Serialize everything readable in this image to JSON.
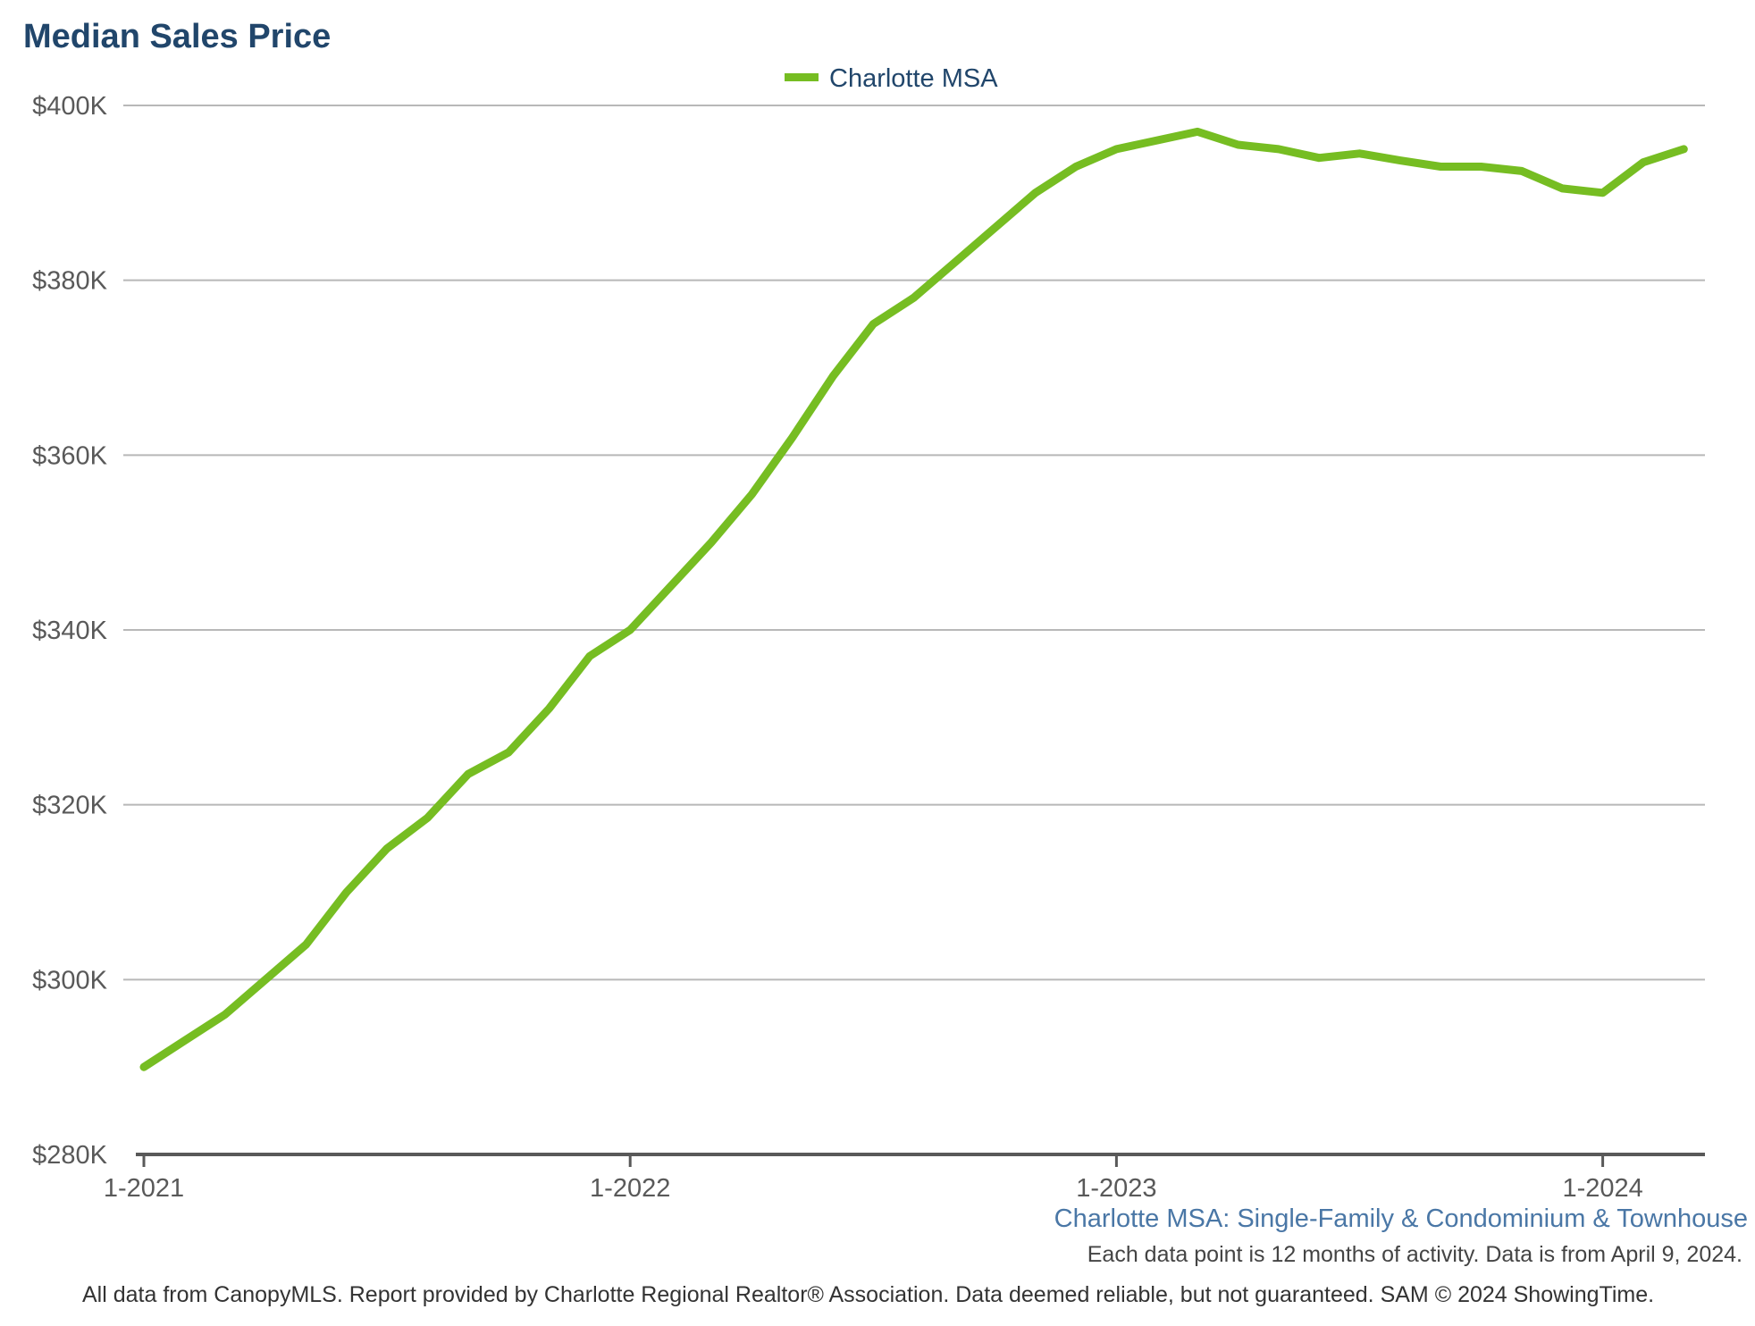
{
  "chart_data": {
    "type": "line",
    "title": "Median Sales Price",
    "legend_position": "top-center",
    "grid": true,
    "xlabel": "",
    "ylabel": "",
    "ylim": [
      280000,
      400000
    ],
    "y_ticks": [
      {
        "value": 280000,
        "label": "$280K"
      },
      {
        "value": 300000,
        "label": "$300K"
      },
      {
        "value": 320000,
        "label": "$320K"
      },
      {
        "value": 340000,
        "label": "$340K"
      },
      {
        "value": 360000,
        "label": "$360K"
      },
      {
        "value": 380000,
        "label": "$380K"
      },
      {
        "value": 400000,
        "label": "$400K"
      }
    ],
    "x_ticks": [
      {
        "value": "2021-01",
        "label": "1-2021"
      },
      {
        "value": "2022-01",
        "label": "1-2022"
      },
      {
        "value": "2023-01",
        "label": "1-2023"
      },
      {
        "value": "2024-01",
        "label": "1-2024"
      }
    ],
    "x": [
      "2021-01",
      "2021-02",
      "2021-03",
      "2021-04",
      "2021-05",
      "2021-06",
      "2021-07",
      "2021-08",
      "2021-09",
      "2021-10",
      "2021-11",
      "2021-12",
      "2022-01",
      "2022-02",
      "2022-03",
      "2022-04",
      "2022-05",
      "2022-06",
      "2022-07",
      "2022-08",
      "2022-09",
      "2022-10",
      "2022-11",
      "2022-12",
      "2023-01",
      "2023-02",
      "2023-03",
      "2023-04",
      "2023-05",
      "2023-06",
      "2023-07",
      "2023-08",
      "2023-09",
      "2023-10",
      "2023-11",
      "2023-12",
      "2024-01",
      "2024-02",
      "2024-03"
    ],
    "series": [
      {
        "name": "Charlotte MSA",
        "color": "#76bd22",
        "values": [
          290000,
          293000,
          296000,
          300000,
          304000,
          310000,
          315000,
          318500,
          323500,
          326000,
          331000,
          337000,
          340000,
          345000,
          350000,
          355500,
          362000,
          369000,
          375000,
          378000,
          382000,
          386000,
          390000,
          393000,
          395000,
          396000,
          397000,
          395500,
          395000,
          394000,
          394500,
          393700,
          393000,
          393000,
          392500,
          390500,
          390000,
          393500,
          395000
        ]
      }
    ],
    "subtitle": "Charlotte MSA: Single-Family & Condominium & Townhouse",
    "note": "Each data point is 12 months of activity. Data is from April 9, 2024.",
    "footer": "All data from CanopyMLS. Report provided by Charlotte Regional Realtor® Association. Data deemed reliable, but not guaranteed. SAM © 2024 ShowingTime."
  }
}
